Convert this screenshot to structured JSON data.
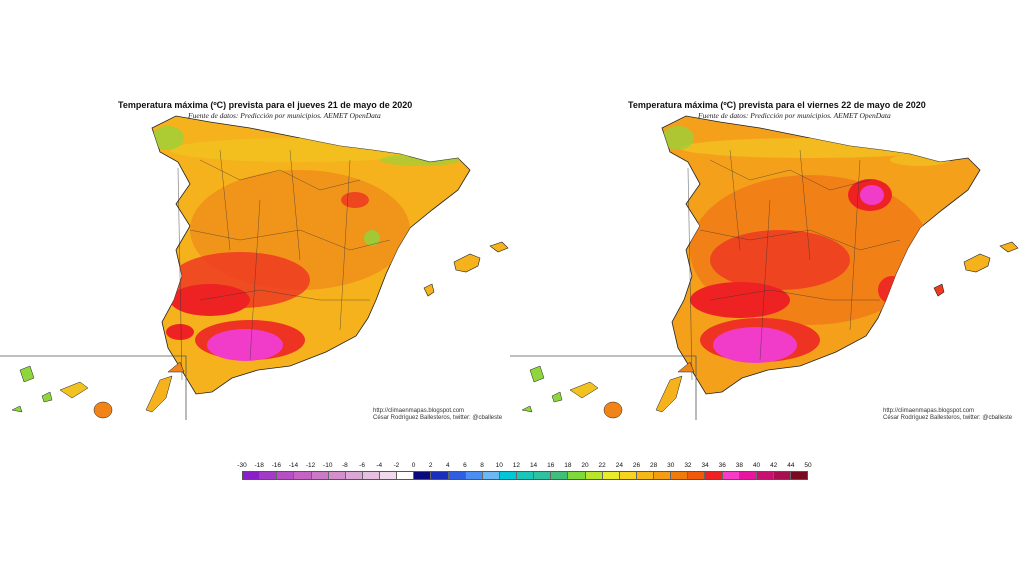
{
  "maps": [
    {
      "title": "Temperatura máxima (ºC) prevista para el jueves 21 de mayo de 2020",
      "subtitle": "Fuente de datos: Predicción por municipios. AEMET OpenData",
      "credit_url": "http://climaenmapas.blogspot.com",
      "credit_author": "César Rodríguez Ballesteros, twitter: @cballeste"
    },
    {
      "title": "Temperatura máxima (ºC) prevista para el viernes 22 de mayo de 2020",
      "subtitle": "Fuente de datos: Predicción por municipios. AEMET OpenData",
      "credit_url": "http://climaenmapas.blogspot.com",
      "credit_author": "César Rodríguez Ballesteros, twitter: @cballeste"
    }
  ],
  "legend": {
    "labels": [
      "-30",
      "-18",
      "-16",
      "-14",
      "-12",
      "-10",
      "-8",
      "-6",
      "-4",
      "-2",
      "0",
      "2",
      "4",
      "6",
      "8",
      "10",
      "12",
      "14",
      "16",
      "18",
      "20",
      "22",
      "24",
      "26",
      "28",
      "30",
      "32",
      "34",
      "36",
      "38",
      "40",
      "42",
      "44",
      "50"
    ],
    "colors": [
      "#8a1fc9",
      "#a23cc6",
      "#b64fc3",
      "#c463c3",
      "#cb7ac7",
      "#d38fcc",
      "#dca6d6",
      "#e6c0e1",
      "#efd9ec",
      "#ffffff",
      "#0a0a7a",
      "#1a2dbb",
      "#2f5fe0",
      "#4b8df2",
      "#6bb8f5",
      "#00c8d6",
      "#19c6b8",
      "#2fc2a0",
      "#3fbf7a",
      "#7fd93a",
      "#b8e62a",
      "#e8ec2a",
      "#f8d420",
      "#f6b818",
      "#f49c12",
      "#f07a0c",
      "#f05a08",
      "#ee2222",
      "#f83cc8",
      "#e8169e",
      "#c81070",
      "#a80f4e",
      "#7a0a20"
    ]
  },
  "colors": {
    "sea": "#ffffff",
    "base_land": "#f6b21c",
    "hot_orange": "#f08418",
    "red": "#ef2a22",
    "magenta": "#f03cc8",
    "yellow": "#f2c220",
    "green": "#8fd63c",
    "cyan": "#3fd0a8"
  }
}
